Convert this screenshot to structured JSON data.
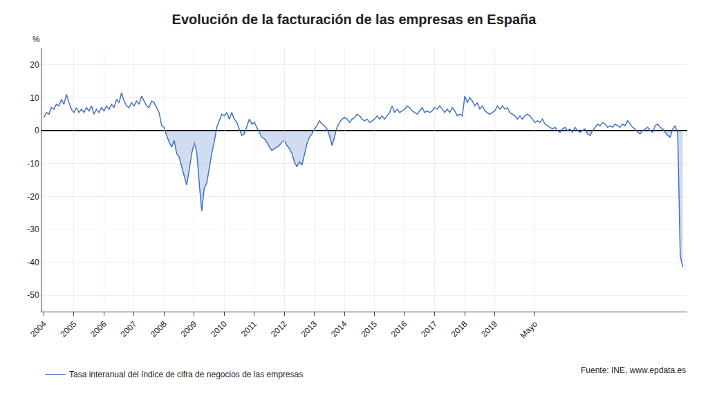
{
  "chart_data": {
    "type": "line",
    "title": "Evolución de la facturación de las empresas en España",
    "ylabel": "%",
    "annotations": [
      "Fuente: INE, www.epdata.es"
    ],
    "grid": true,
    "legend": "lower left",
    "series": [
      {
        "name": "Tasa interanual del índice de cifra de negocios de las empresas",
        "color": "#4472c4",
        "values": [
          4.0,
          5.5,
          5.0,
          7.0,
          6.5,
          8.0,
          7.5,
          9.5,
          8.0,
          11.0,
          8.5,
          6.5,
          5.5,
          7.0,
          5.5,
          6.5,
          5.5,
          7.0,
          6.0,
          7.5,
          5.0,
          6.5,
          5.5,
          7.0,
          6.0,
          7.5,
          6.5,
          8.0,
          7.0,
          9.5,
          8.5,
          11.5,
          9.0,
          7.5,
          7.0,
          8.5,
          7.5,
          9.0,
          8.0,
          10.5,
          9.0,
          7.5,
          7.0,
          9.0,
          8.5,
          7.0,
          5.5,
          1.5,
          1.0,
          -1.5,
          -3.5,
          -5.0,
          -3.0,
          -7.0,
          -8.0,
          -11.0,
          -14.0,
          -16.5,
          -12.0,
          -7.0,
          -3.5,
          -6.5,
          -16.0,
          -24.5,
          -17.5,
          -16.0,
          -11.5,
          -7.0,
          -3.5,
          1.0,
          3.0,
          5.0,
          4.5,
          5.5,
          3.5,
          5.5,
          3.5,
          2.5,
          0.5,
          -1.5,
          -1.0,
          1.5,
          3.5,
          2.0,
          2.5,
          1.0,
          -0.5,
          -2.0,
          -2.5,
          -3.5,
          -5.0,
          -6.0,
          -5.5,
          -5.0,
          -4.5,
          -3.5,
          -3.0,
          -4.5,
          -5.5,
          -7.0,
          -9.5,
          -11.0,
          -9.5,
          -10.5,
          -7.5,
          -4.0,
          -2.0,
          -1.0,
          0.5,
          1.5,
          3.0,
          2.0,
          1.5,
          0.5,
          -1.5,
          -4.5,
          -2.0,
          1.0,
          2.5,
          3.5,
          4.0,
          3.5,
          2.5,
          3.5,
          4.0,
          5.0,
          4.5,
          3.5,
          3.0,
          3.5,
          2.5,
          3.0,
          3.5,
          4.5,
          3.5,
          4.5,
          3.5,
          4.5,
          5.5,
          7.5,
          5.5,
          6.5,
          5.5,
          6.0,
          6.5,
          7.5,
          7.0,
          6.0,
          5.5,
          5.0,
          6.0,
          7.0,
          5.5,
          6.0,
          5.5,
          6.0,
          7.0,
          6.5,
          7.5,
          6.5,
          5.5,
          6.5,
          5.5,
          7.0,
          6.0,
          4.5,
          5.0,
          4.5,
          10.5,
          8.5,
          10.0,
          9.0,
          7.5,
          8.5,
          6.5,
          7.5,
          6.0,
          5.5,
          5.0,
          5.5,
          6.0,
          7.5,
          6.5,
          7.5,
          6.5,
          7.0,
          5.5,
          5.0,
          4.5,
          3.5,
          4.5,
          3.5,
          4.5,
          5.0,
          4.5,
          3.5,
          2.5,
          3.0,
          2.5,
          3.5,
          2.0,
          1.5,
          1.0,
          0.5,
          1.0,
          0.0,
          -0.5,
          0.5,
          1.0,
          0.0,
          0.5,
          -0.5,
          1.0,
          0.0,
          -0.5,
          0.0,
          0.5,
          -1.0,
          -1.5,
          0.0,
          1.0,
          2.0,
          1.5,
          2.5,
          2.0,
          1.0,
          1.5,
          1.0,
          2.0,
          1.5,
          1.0,
          2.0,
          1.5,
          3.0,
          2.0,
          1.0,
          0.5,
          -0.5,
          -1.0,
          0.0,
          0.5,
          1.0,
          0.0,
          -0.5,
          1.5,
          2.0,
          1.0,
          0.5,
          -0.5,
          -1.5,
          -2.0,
          0.5,
          1.5,
          -1.0,
          -38.0,
          -41.5
        ]
      }
    ],
    "x": [
      2004,
      2004.083333,
      2004.166667,
      2004.25,
      2004.333333,
      2004.416667,
      2004.5,
      2004.583333,
      2004.666667,
      2004.75,
      2004.833333,
      2004.916667,
      2005,
      2005.083333,
      2005.166667,
      2005.25,
      2005.333333,
      2005.416667,
      2005.5,
      2005.583333,
      2005.666667,
      2005.75,
      2005.833333,
      2005.916667,
      2006,
      2006.083333,
      2006.166667,
      2006.25,
      2006.333333,
      2006.416667,
      2006.5,
      2006.583333,
      2006.666667,
      2006.75,
      2006.833333,
      2006.916667,
      2007,
      2007.083333,
      2007.166667,
      2007.25,
      2007.333333,
      2007.416667,
      2007.5,
      2007.583333,
      2007.666667,
      2007.75,
      2007.833333,
      2007.916667,
      2008,
      2008.083333,
      2008.166667,
      2008.25,
      2008.333333,
      2008.416667,
      2008.5,
      2008.583333,
      2008.666667,
      2008.75,
      2008.833333,
      2008.916667,
      2009,
      2009.083333,
      2009.166667,
      2009.25,
      2009.333333,
      2009.416667,
      2009.5,
      2009.583333,
      2009.666667,
      2009.75,
      2009.833333,
      2009.916667,
      2010,
      2010.083333,
      2010.166667,
      2010.25,
      2010.333333,
      2010.416667,
      2010.5,
      2010.583333,
      2010.666667,
      2010.75,
      2010.833333,
      2010.916667,
      2011,
      2011.083333,
      2011.166667,
      2011.25,
      2011.333333,
      2011.416667,
      2011.5,
      2011.583333,
      2011.666667,
      2011.75,
      2011.833333,
      2011.916667,
      2012,
      2012.083333,
      2012.166667,
      2012.25,
      2012.333333,
      2012.416667,
      2012.5,
      2012.583333,
      2012.666667,
      2012.75,
      2012.833333,
      2012.916667,
      2013,
      2013.083333,
      2013.166667,
      2013.25,
      2013.333333,
      2013.416667,
      2013.5,
      2013.583333,
      2013.666667,
      2013.75,
      2013.833333,
      2013.916667,
      2014,
      2014.083333,
      2014.166667,
      2014.25,
      2014.333333,
      2014.416667,
      2014.5,
      2014.583333,
      2014.666667,
      2014.75,
      2014.833333,
      2014.916667,
      2015,
      2015.083333,
      2015.166667,
      2015.25,
      2015.333333,
      2015.416667,
      2015.5,
      2015.583333,
      2015.666667,
      2015.75,
      2015.833333,
      2015.916667,
      2016,
      2016.083333,
      2016.166667,
      2016.25,
      2016.333333,
      2016.416667,
      2016.5,
      2016.583333,
      2016.666667,
      2016.75,
      2016.833333,
      2016.916667,
      2017,
      2017.083333,
      2017.166667,
      2017.25,
      2017.333333,
      2017.416667,
      2017.5,
      2017.583333,
      2017.666667,
      2017.75,
      2017.833333,
      2017.916667,
      2018,
      2018.083333,
      2018.166667,
      2018.25,
      2018.333333,
      2018.416667,
      2018.5,
      2018.583333,
      2018.666667,
      2018.75,
      2018.833333,
      2018.916667,
      2019,
      2019.083333,
      2019.166667,
      2019.25,
      2019.333333,
      2019.416667,
      2019.5,
      2019.583333,
      2019.666667,
      2019.75,
      2019.833333,
      2019.916667,
      2020,
      2020.083333,
      2020.166667,
      2020.25,
      2020.333333,
      2020.416667,
      2020.5,
      2020.583333,
      2020.666667,
      2020.75,
      2020.833333,
      2020.916667,
      2021,
      2021.083333,
      2021.166667,
      2021.25,
      2021.333333,
      2021.416667,
      2021.5,
      2021.583333,
      2021.666667,
      2021.75,
      2021.833333,
      2021.916667,
      2022,
      2022.083333,
      2022.166667,
      2022.25,
      2022.333333,
      2022.416667,
      2022.5,
      2022.583333,
      2022.666667,
      2022.75,
      2022.833333,
      2022.916667,
      2023,
      2023.083333,
      2023.166667,
      2023.25,
      2023.333333,
      2023.416667,
      2023.5,
      2023.583333,
      2023.666667,
      2023.75,
      2023.833333,
      2023.916667,
      2024,
      2024.083333,
      2024.166667,
      2024.25,
      2024.333333,
      2024.416667,
      2024.5,
      2024.583333,
      2024.666667,
      2024.75,
      2024.833333,
      2024.916667,
      2025,
      2025.083333,
      2025.166667,
      2025.25
    ],
    "xlim": [
      2003.92,
      2025.4
    ],
    "xticks": [
      2004,
      2005,
      2006,
      2007,
      2008,
      2009,
      2010,
      2011,
      2012,
      2013,
      2014,
      2015,
      2016,
      2017,
      2018,
      2019,
      {
        "value": 2020.333333,
        "label": "Mayo"
      }
    ],
    "ylim": [
      -55,
      25
    ],
    "yticks": [
      -50,
      -40,
      -30,
      -20,
      -10,
      0,
      10,
      20
    ]
  }
}
